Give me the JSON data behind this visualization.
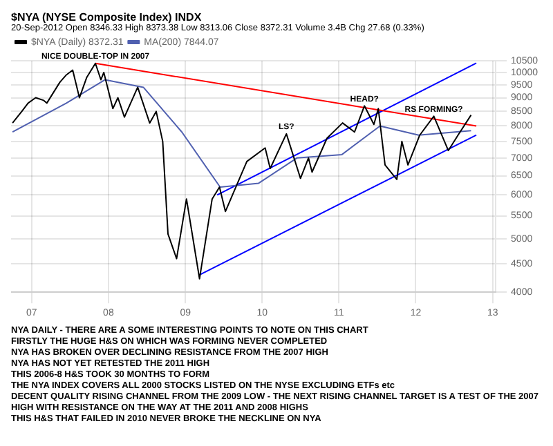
{
  "chart_data": {
    "type": "line",
    "title": "$NYA (NYSE Composite Index) INDX",
    "subtitle": "20-Sep-2012   Open 8346.33  High 8373.38  Low 8313.06  Close 8372.31  Volume 3.4B  Chg 27.68 (0.33%)",
    "series": [
      {
        "name": "$NYA (Daily) 8372.31",
        "color": "#000000",
        "x": [
          "2006-10-02",
          "2006-11-15",
          "2006-12-15",
          "2007-01-20",
          "2007-02-27",
          "2007-03-14",
          "2007-05-15",
          "2007-06-15",
          "2007-07-15",
          "2007-08-16",
          "2007-09-20",
          "2007-10-31",
          "2007-11-26",
          "2007-12-10",
          "2008-01-22",
          "2008-02-15",
          "2008-03-17",
          "2008-05-19",
          "2008-07-15",
          "2008-08-15",
          "2008-09-15",
          "2008-10-10",
          "2008-11-20",
          "2009-01-06",
          "2009-03-09",
          "2009-05-08",
          "2009-06-12",
          "2009-07-10",
          "2009-10-20",
          "2010-01-15",
          "2010-02-08",
          "2010-04-26",
          "2010-07-02",
          "2010-08-09",
          "2010-08-26",
          "2010-11-05",
          "2011-01-18",
          "2011-03-16",
          "2011-05-02",
          "2011-06-16",
          "2011-07-07",
          "2011-08-08",
          "2011-10-03",
          "2011-10-27",
          "2011-11-25",
          "2012-01-20",
          "2012-03-27",
          "2012-06-04",
          "2012-07-20",
          "2012-09-20"
        ],
        "values": [
          8100,
          8500,
          8800,
          9000,
          8900,
          8800,
          9600,
          9900,
          10100,
          9000,
          9800,
          10387,
          9700,
          10000,
          8600,
          9000,
          8300,
          9400,
          8100,
          8500,
          7500,
          5100,
          4600,
          5900,
          4230,
          5900,
          6200,
          5600,
          6900,
          7300,
          6700,
          7740,
          6430,
          7000,
          6600,
          7600,
          8100,
          7800,
          8700,
          8050,
          8600,
          6800,
          6400,
          7500,
          6800,
          7700,
          8330,
          7220,
          7700,
          8372
        ]
      },
      {
        "name": "MA(200) 7844.07",
        "color": "#5060b0",
        "x": [
          "2006-10-02",
          "2007-06-15",
          "2007-12-15",
          "2008-06-15",
          "2008-12-15",
          "2009-06-15",
          "2009-12-15",
          "2010-06-15",
          "2011-01-15",
          "2011-07-15",
          "2012-01-15",
          "2012-09-20"
        ],
        "values": [
          7800,
          8800,
          9700,
          9400,
          7800,
          6200,
          6300,
          7000,
          7100,
          8000,
          7700,
          7844
        ]
      },
      {
        "color": "#ff0000",
        "x": [
          "2007-10-31",
          "2012-10-15"
        ],
        "values": [
          10387,
          8000
        ]
      },
      {
        "color": "#0000ff",
        "x": [
          "2009-03-09",
          "2012-10-15"
        ],
        "values": [
          4300,
          7700
        ]
      },
      {
        "color": "#0000ff",
        "x": [
          "2009-06-01",
          "2012-10-15"
        ],
        "values": [
          6000,
          10400
        ]
      }
    ],
    "xlim": [
      "2006-09-25",
      "2013-01-15"
    ],
    "xticks": [
      {
        "value": "2007-01-01",
        "label": "07"
      },
      {
        "value": "2008-01-01",
        "label": "08"
      },
      {
        "value": "2009-01-01",
        "label": "09"
      },
      {
        "value": "2010-01-01",
        "label": "10"
      },
      {
        "value": "2011-01-01",
        "label": "11"
      },
      {
        "value": "2012-01-01",
        "label": "12"
      },
      {
        "value": "2013-01-01",
        "label": "13"
      }
    ],
    "ylim": [
      4000,
      10500
    ],
    "yticks": [
      4000,
      4500,
      5000,
      5500,
      6000,
      6500,
      7000,
      7500,
      8000,
      8500,
      9000,
      9500,
      10000,
      10500
    ],
    "log": "y",
    "grid": true,
    "legend": "top left",
    "line_style": "solid",
    "marker": "none",
    "annotations": [
      {
        "text": "NICE DOUBLE-TOP IN 2007",
        "x": "2007-10-31",
        "y": 10387
      },
      {
        "text": "HEAD?",
        "x": "2011-05-02",
        "y": 8700
      },
      {
        "text": "LS?",
        "x": "2010-04-26",
        "y": 7740
      },
      {
        "text": "RS FORMING?",
        "x": "2012-03-27",
        "y": 8330
      },
      "NYA DAILY - THERE ARE A SOME INTERESTING POINTS TO NOTE ON THIS CHART",
      "FIRSTLY THE HUGE H&S ON WHICH WAS FORMING NEVER COMPLETED",
      "NYA HAS BROKEN OVER DECLINING RESISTANCE FROM THE 2007 HIGH",
      "NYA HAS NOT YET RETESTED THE 2011 HIGH",
      "THIS 2006-8 H&S TOOK 30 MONTHS TO FORM",
      "THE NYA INDEX COVERS ALL 2000 STOCKS LISTED ON THE NYSE EXCLUDING ETFs etc",
      "DECENT QUALITY RISING CHANNEL FROM THE 2009 LOW - THE NEXT RISING CHANNEL TARGET IS A TEST OF THE 2007 HIGH WITH RESISTANCE ON THE WAY AT THE 2011 AND 2008 HIGHS",
      "THIS H&S THAT FAILED IN 2010 NEVER BROKE THE NECKLINE ON NYA"
    ]
  }
}
